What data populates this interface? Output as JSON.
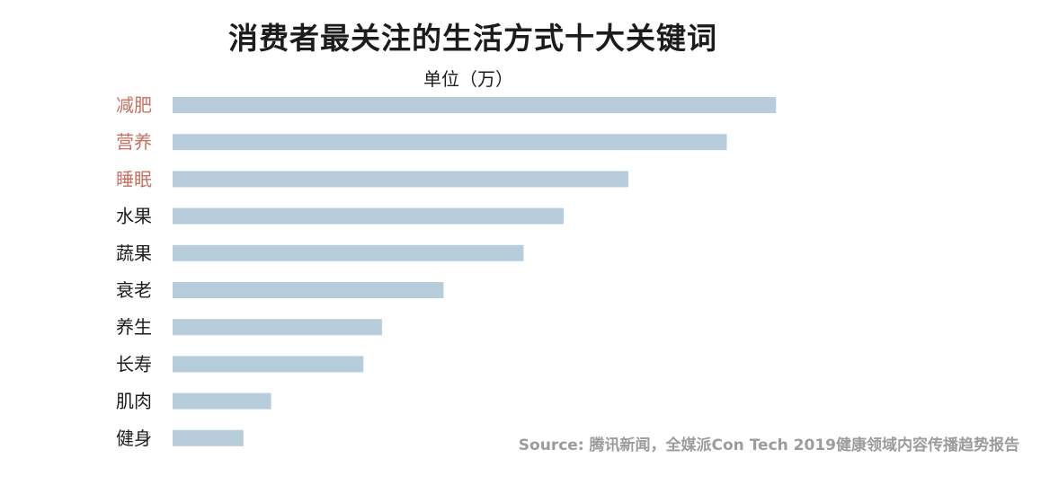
{
  "title": "消费者最关注的生活方式十大关键词",
  "unit_label": "单位（万）",
  "source": "Source: 腾讯新闻，全媒派Con Tech 2019健康领域内容传播趋势报告",
  "colors": {
    "bar": "#b8cddc",
    "highlight_label": "#c87062",
    "label": "#1c1c1c",
    "title": "#1c1c1c",
    "source": "#9c9c9c"
  },
  "chart_data": {
    "type": "bar",
    "orientation": "horizontal",
    "title": "消费者最关注的生活方式十大关键词",
    "xlabel": "单位（万）",
    "ylabel": "",
    "categories": [
      "减肥",
      "营养",
      "睡眠",
      "水果",
      "蔬果",
      "衰老",
      "养生",
      "长寿",
      "肌肉",
      "健身"
    ],
    "values": [
      98,
      90,
      74,
      63.5,
      57,
      44,
      34,
      31,
      16,
      11.5
    ],
    "highlighted": [
      "减肥",
      "营养",
      "睡眠"
    ],
    "xlim": [
      0,
      100
    ],
    "grid": false,
    "legend": "none"
  }
}
